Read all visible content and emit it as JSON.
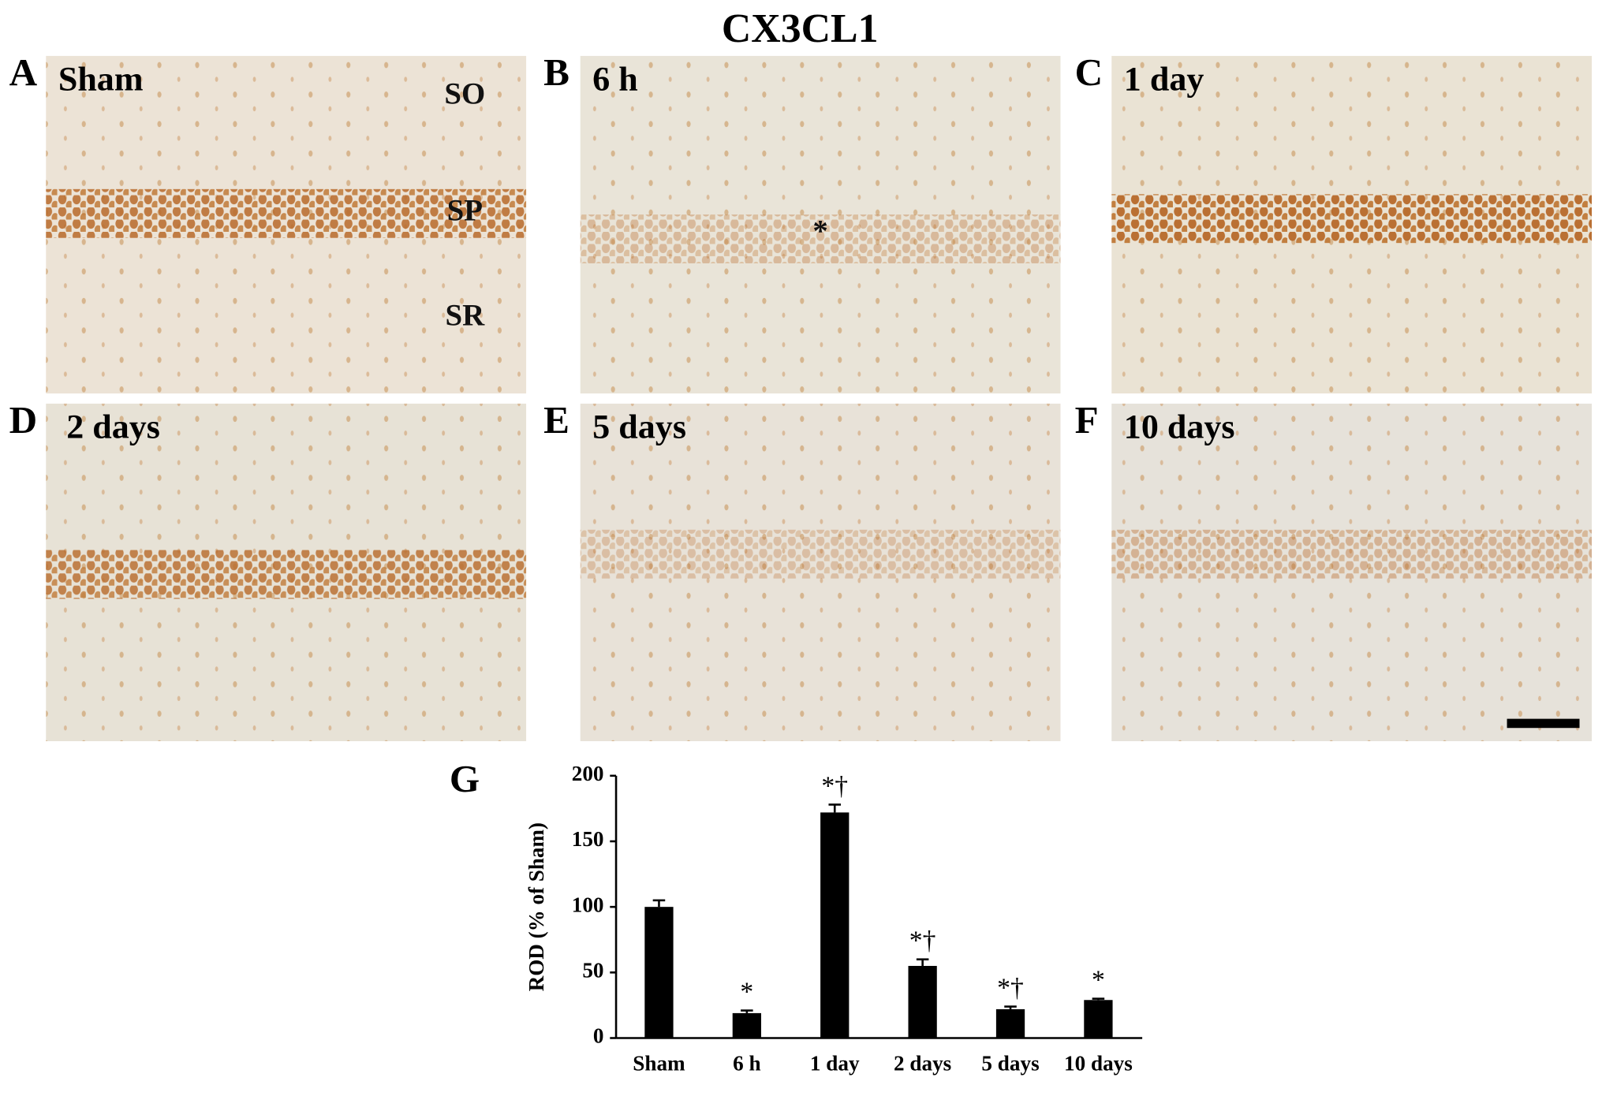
{
  "title": "CX3CL1",
  "panels": [
    {
      "letter": "A",
      "label": "Sham",
      "regions": [
        "SO",
        "SP",
        "SR"
      ]
    },
    {
      "letter": "B",
      "label": "6 h",
      "marker": "*"
    },
    {
      "letter": "C",
      "label": "1 day"
    },
    {
      "letter": "D",
      "label": "2 days"
    },
    {
      "letter": "E",
      "label": "5 days"
    },
    {
      "letter": "F",
      "label": "10 days"
    }
  ],
  "chart_data": {
    "type": "bar",
    "panel_letter": "G",
    "y_label": "ROD (% of Sham)",
    "categories": [
      "Sham",
      "6 h",
      "1 day",
      "2 days",
      "5 days",
      "10 days"
    ],
    "values": [
      100,
      19,
      172,
      55,
      22,
      29
    ],
    "errors": [
      5,
      2,
      6,
      5,
      2,
      1
    ],
    "annotations": [
      null,
      "*",
      "*†",
      "*†",
      "*†",
      "*"
    ],
    "color": "#000000",
    "ylim": [
      0,
      200
    ],
    "yticks": [
      0,
      50,
      100,
      150,
      200
    ]
  }
}
